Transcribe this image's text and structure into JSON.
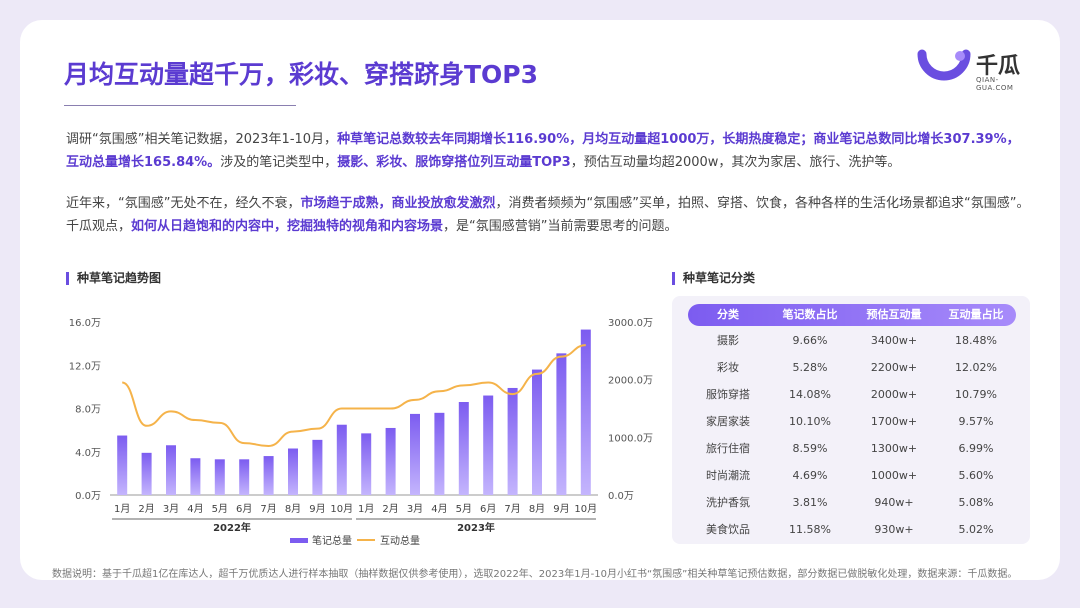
{
  "title": "月均互动量超千万，彩妆、穿搭跻身TOP3",
  "logo": {
    "name": "千瓜",
    "url": "QIAN-GUA.COM"
  },
  "para1": {
    "t1": "调研“氛围感”相关笔记数据，2023年1-10月，",
    "b1": "种草笔记总数较去年同期增长116.90%，月均互动量超1000万，长期热度稳定；商业笔记总数同比增长307.39%，互动总量增长165.84%。",
    "t2": "涉及的笔记类型中，",
    "b2": "摄影、彩妆、服饰穿搭位列互动量TOP3",
    "t3": "，预估互动量均超2000w，其次为家居、旅行、洗护等。"
  },
  "para2": {
    "t1": "近年来，“氛围感”无处不在，经久不衰，",
    "b1": "市场趋于成熟，商业投放愈发激烈",
    "t2": "，消费者频频为“氛围感”买单，拍照、穿搭、饮食，各种各样的生活化场景都追求“氛围感”。千瓜观点，",
    "b2": "如何从日趋饱和的内容中，挖掘独特的视角和内容场景",
    "t3": "，是“氛围感营销”当前需要思考的问题。"
  },
  "chart_section_title": "种草笔记趋势图",
  "table_section_title": "种草笔记分类",
  "chart_data": {
    "type": "bar",
    "title": "种草笔记趋势图",
    "categories": [
      "1月",
      "2月",
      "3月",
      "4月",
      "5月",
      "6月",
      "7月",
      "8月",
      "9月",
      "10月",
      "1月",
      "2月",
      "3月",
      "4月",
      "5月",
      "6月",
      "7月",
      "8月",
      "9月",
      "10月"
    ],
    "groups": [
      {
        "label": "2022年",
        "from": 0,
        "to": 9
      },
      {
        "label": "2023年",
        "from": 10,
        "to": 19
      }
    ],
    "series": [
      {
        "name": "笔记总量",
        "type": "bar",
        "axis": "left",
        "values": [
          5.5,
          3.9,
          4.6,
          3.4,
          3.3,
          3.3,
          3.6,
          4.3,
          5.1,
          6.5,
          5.7,
          6.2,
          7.5,
          7.6,
          8.6,
          9.2,
          9.9,
          11.6,
          13.1,
          15.3
        ]
      },
      {
        "name": "互动总量",
        "type": "line",
        "axis": "right",
        "values": [
          1950,
          1200,
          1450,
          1300,
          1250,
          900,
          850,
          1100,
          1150,
          1500,
          1500,
          1500,
          1650,
          1800,
          1900,
          1950,
          1750,
          2100,
          2400,
          2600
        ]
      }
    ],
    "y_left": {
      "ticks": [
        "0.0万",
        "4.0万",
        "8.0万",
        "12.0万",
        "16.0万"
      ],
      "range": [
        0,
        16
      ]
    },
    "y_right": {
      "ticks": [
        "0.0万",
        "1000.0万",
        "2000.0万",
        "3000.0万"
      ],
      "range": [
        0,
        3000
      ]
    },
    "colors": {
      "bar": "#7c5cf0",
      "line": "#f5b34a"
    },
    "legend_position": "bottom"
  },
  "table": {
    "headers": [
      "分类",
      "笔记数占比",
      "预估互动量",
      "互动量占比"
    ],
    "rows": [
      [
        "摄影",
        "9.66%",
        "3400w+",
        "18.48%"
      ],
      [
        "彩妆",
        "5.28%",
        "2200w+",
        "12.02%"
      ],
      [
        "服饰穿搭",
        "14.08%",
        "2000w+",
        "10.79%"
      ],
      [
        "家居家装",
        "10.10%",
        "1700w+",
        "9.57%"
      ],
      [
        "旅行住宿",
        "8.59%",
        "1300w+",
        "6.99%"
      ],
      [
        "时尚潮流",
        "4.69%",
        "1000w+",
        "5.60%"
      ],
      [
        "洗护香氛",
        "3.81%",
        "940w+",
        "5.08%"
      ],
      [
        "美食饮品",
        "11.58%",
        "930w+",
        "5.02%"
      ]
    ]
  },
  "footnote": "数据说明：基于千瓜超1亿在库达人，超千万优质达人进行样本抽取（抽样数据仅供参考使用），选取2022年、2023年1月-10月小红书“氛围感”相关种草笔记预估数据，部分数据已做脱敏化处理，数据来源：千瓜数据。"
}
